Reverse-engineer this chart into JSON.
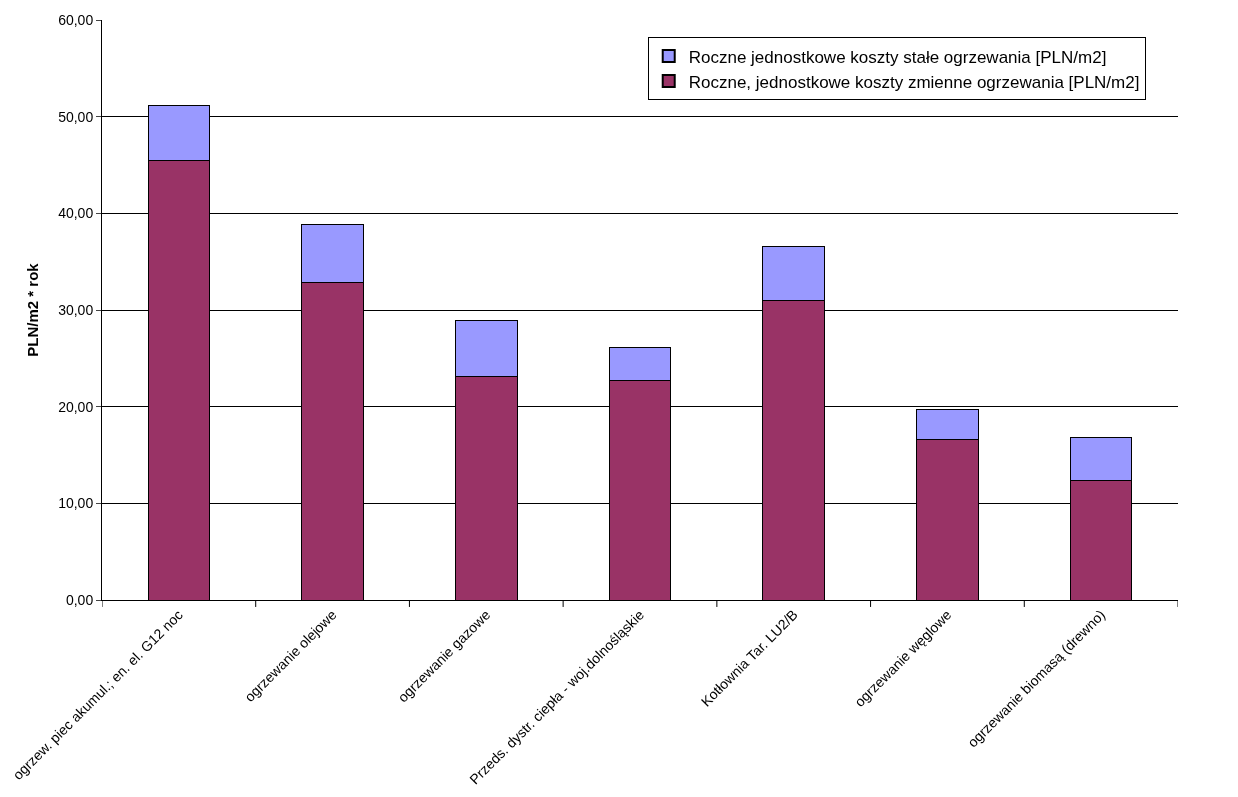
{
  "chart_data": {
    "type": "bar",
    "stacked": true,
    "ylabel": "PLN/m2 * rok",
    "categories": [
      "ogrzew. piec akumul.; en. el. G12 noc",
      "ogrzewanie olejowe",
      "ogrzewanie gazowe",
      "Przeds. dystr. ciepła - woj.dolnośląskie",
      "Kotłownia Tar. LU2/B",
      "ogrzewanie węglowe",
      "ogrzewanie biomasą (drewno)"
    ],
    "series": [
      {
        "name": "Roczne, jednostkowe koszty zmienne ogrzewania [PLN/m2]",
        "color": "#993366",
        "values": [
          45.5,
          32.8,
          23.1,
          22.7,
          31.0,
          16.6,
          12.4
        ]
      },
      {
        "name": "Roczne jednostkowe koszty stałe ogrzewania [PLN/m2]",
        "color": "#9999ff",
        "values": [
          5.7,
          6.0,
          5.8,
          3.4,
          5.6,
          3.1,
          4.4
        ]
      }
    ],
    "ylim": [
      0,
      60
    ],
    "yticks": [
      {
        "value": 0,
        "label": "0,00"
      },
      {
        "value": 10,
        "label": "10,00"
      },
      {
        "value": 20,
        "label": "20,00"
      },
      {
        "value": 30,
        "label": "30,00"
      },
      {
        "value": 40,
        "label": "40,00"
      },
      {
        "value": 50,
        "label": "50,00"
      },
      {
        "value": 60,
        "label": "60,00"
      }
    ],
    "grid": "y",
    "legend": "top right"
  }
}
